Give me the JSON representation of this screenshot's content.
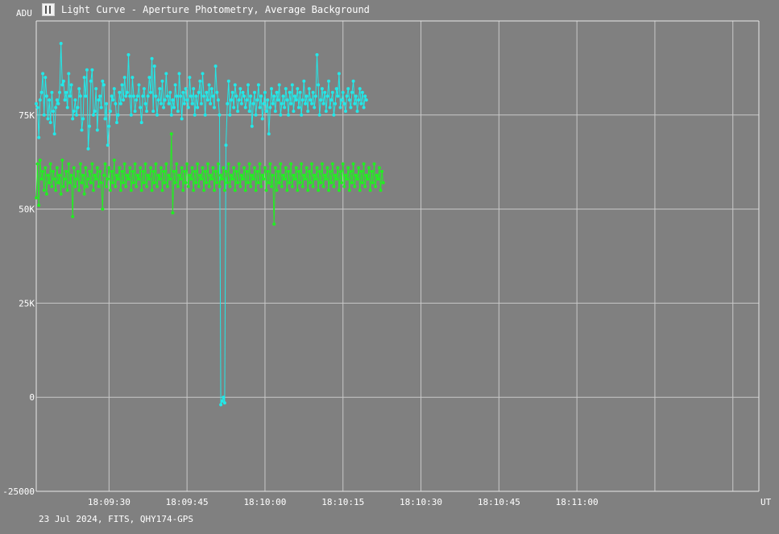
{
  "window": {
    "title": "Light Curve - Aperture Photometry, Average Background",
    "icon": "light-curve-app-icon"
  },
  "footer": {
    "caption": "23 Jul 2024, FITS, QHY174-GPS"
  },
  "chart_data": {
    "type": "line",
    "ylabel": "ADU",
    "xlabel": "UT",
    "ylim": [
      -25000,
      100000
    ],
    "xlim": [
      "18:09:16",
      "18:11:35"
    ],
    "grid": true,
    "y_ticks": [
      {
        "value": -25000,
        "label": "-25000"
      },
      {
        "value": 0,
        "label": "0"
      },
      {
        "value": 25000,
        "label": "25K"
      },
      {
        "value": 50000,
        "label": "50K"
      },
      {
        "value": 75000,
        "label": "75K"
      }
    ],
    "x_ticks": [
      {
        "value": "18:09:30",
        "label": "18:09:30"
      },
      {
        "value": "18:09:45",
        "label": "18:09:45"
      },
      {
        "value": "18:10:00",
        "label": "18:10:00"
      },
      {
        "value": "18:10:15",
        "label": "18:10:15"
      },
      {
        "value": "18:10:30",
        "label": "18:10:30"
      },
      {
        "value": "18:10:45",
        "label": "18:10:45"
      },
      {
        "value": "18:11:00",
        "label": "18:11:00"
      }
    ],
    "x_sample_start": "18:09:16",
    "x_sample_interval_s": 0.25,
    "series": [
      {
        "color": "#22e8e8",
        "values": [
          78000,
          77000,
          69000,
          79000,
          81000,
          86000,
          75000,
          85000,
          80000,
          74000,
          79000,
          73000,
          81000,
          76000,
          70000,
          77000,
          79000,
          78000,
          81000,
          94000,
          83000,
          84000,
          79000,
          81000,
          77000,
          86000,
          80000,
          83000,
          74000,
          76000,
          79000,
          75000,
          77000,
          82000,
          80000,
          71000,
          74000,
          85000,
          80000,
          87000,
          66000,
          72000,
          84000,
          87000,
          75000,
          76000,
          82000,
          71000,
          79000,
          80000,
          77000,
          84000,
          83000,
          74000,
          78000,
          67000,
          72000,
          76000,
          80000,
          79000,
          82000,
          78000,
          73000,
          75000,
          81000,
          78000,
          83000,
          79000,
          85000,
          80000,
          81000,
          91000,
          80000,
          75000,
          85000,
          80000,
          76000,
          79000,
          80000,
          83000,
          77000,
          73000,
          80000,
          82000,
          78000,
          76000,
          80000,
          85000,
          81000,
          90000,
          76000,
          88000,
          80000,
          75000,
          79000,
          82000,
          78000,
          84000,
          77000,
          79000,
          86000,
          80000,
          78000,
          81000,
          75000,
          79000,
          77000,
          83000,
          80000,
          76000,
          86000,
          80000,
          74000,
          81000,
          78000,
          82000,
          79000,
          77000,
          85000,
          80000,
          78000,
          82000,
          75000,
          80000,
          77000,
          81000,
          84000,
          78000,
          86000,
          80000,
          75000,
          81000,
          79000,
          83000,
          78000,
          82000,
          80000,
          77000,
          88000,
          81000,
          79000,
          75000,
          -2000,
          -1000,
          0,
          -1500,
          67000,
          78000,
          84000,
          75000,
          79000,
          81000,
          77000,
          83000,
          80000,
          76000,
          79000,
          82000,
          78000,
          81000,
          80000,
          77000,
          79000,
          83000,
          76000,
          80000,
          72000,
          78000,
          81000,
          75000,
          79000,
          83000,
          77000,
          80000,
          74000,
          78000,
          81000,
          76000,
          79000,
          70000,
          77000,
          82000,
          78000,
          80000,
          76000,
          81000,
          79000,
          83000,
          75000,
          78000,
          80000,
          77000,
          82000,
          79000,
          75000,
          81000,
          78000,
          83000,
          76000,
          80000,
          79000,
          82000,
          77000,
          81000,
          75000,
          79000,
          84000,
          78000,
          80000,
          76000,
          82000,
          79000,
          78000,
          81000,
          77000,
          80000,
          91000,
          83000,
          75000,
          79000,
          82000,
          78000,
          81000,
          76000,
          80000,
          84000,
          77000,
          79000,
          81000,
          75000,
          78000,
          82000,
          80000,
          86000,
          77000,
          79000,
          81000,
          78000,
          76000,
          80000,
          82000,
          79000,
          77000,
          81000,
          84000,
          78000,
          80000,
          76000,
          79000,
          82000,
          78000,
          81000,
          77000,
          80000,
          79000
        ]
      },
      {
        "color": "#22ee22",
        "values": [
          53000,
          62000,
          51000,
          63000,
          58000,
          60000,
          55000,
          61000,
          54000,
          59000,
          57000,
          62000,
          56000,
          60000,
          58000,
          55000,
          61000,
          57000,
          59000,
          54000,
          63000,
          56000,
          58000,
          60000,
          55000,
          62000,
          57000,
          59000,
          48000,
          61000,
          56000,
          58000,
          60000,
          55000,
          62000,
          57000,
          59000,
          54000,
          61000,
          56000,
          58000,
          60000,
          57000,
          62000,
          55000,
          59000,
          58000,
          61000,
          56000,
          60000,
          57000,
          50000,
          59000,
          62000,
          56000,
          58000,
          61000,
          55000,
          60000,
          57000,
          63000,
          56000,
          59000,
          58000,
          61000,
          55000,
          60000,
          57000,
          62000,
          56000,
          59000,
          58000,
          61000,
          55000,
          60000,
          57000,
          62000,
          56000,
          59000,
          58000,
          61000,
          55000,
          60000,
          57000,
          62000,
          56000,
          59000,
          58000,
          61000,
          55000,
          60000,
          57000,
          62000,
          56000,
          59000,
          58000,
          61000,
          55000,
          60000,
          57000,
          62000,
          56000,
          59000,
          58000,
          70000,
          49000,
          60000,
          57000,
          62000,
          56000,
          59000,
          58000,
          61000,
          55000,
          60000,
          57000,
          62000,
          56000,
          59000,
          58000,
          61000,
          55000,
          60000,
          57000,
          62000,
          56000,
          59000,
          58000,
          61000,
          55000,
          60000,
          57000,
          62000,
          56000,
          59000,
          58000,
          61000,
          55000,
          60000,
          57000,
          62000,
          56000,
          59000,
          58000,
          61000,
          55000,
          60000,
          57000,
          62000,
          56000,
          59000,
          58000,
          61000,
          55000,
          60000,
          57000,
          62000,
          56000,
          59000,
          58000,
          61000,
          55000,
          60000,
          57000,
          62000,
          56000,
          59000,
          58000,
          61000,
          55000,
          60000,
          57000,
          62000,
          56000,
          59000,
          58000,
          61000,
          55000,
          60000,
          57000,
          62000,
          56000,
          59000,
          46000,
          61000,
          55000,
          60000,
          57000,
          62000,
          56000,
          59000,
          58000,
          61000,
          55000,
          60000,
          57000,
          62000,
          56000,
          59000,
          58000,
          61000,
          55000,
          60000,
          57000,
          62000,
          56000,
          59000,
          58000,
          61000,
          55000,
          60000,
          57000,
          62000,
          56000,
          59000,
          58000,
          61000,
          55000,
          60000,
          57000,
          62000,
          56000,
          59000,
          58000,
          61000,
          55000,
          60000,
          57000,
          62000,
          56000,
          59000,
          58000,
          61000,
          55000,
          60000,
          57000,
          62000,
          56000,
          59000,
          58000,
          61000,
          55000,
          60000,
          57000,
          62000,
          56000,
          59000,
          58000,
          61000,
          55000,
          60000,
          57000,
          62000,
          56000,
          59000,
          58000,
          61000,
          55000,
          60000,
          57000,
          62000,
          56000,
          59000,
          58000,
          61000,
          55000,
          60000,
          57000
        ]
      }
    ]
  }
}
